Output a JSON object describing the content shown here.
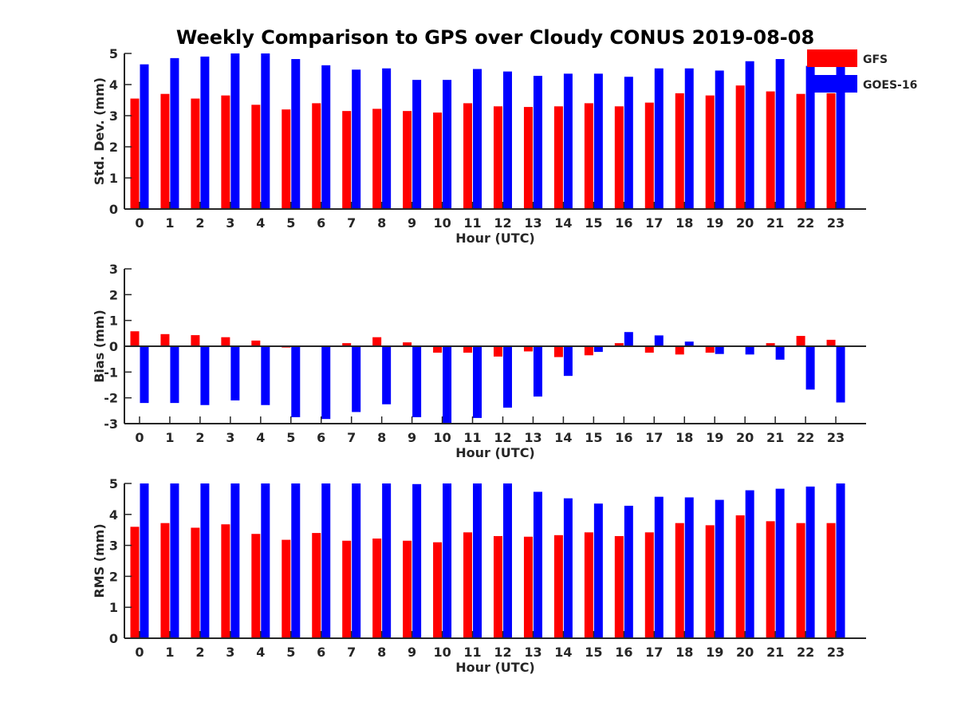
{
  "title": "Weekly Comparison to GPS over Cloudy CONUS 2019-08-08",
  "legend": [
    {
      "name": "GFS",
      "color": "#ff0000"
    },
    {
      "name": "GOES-16",
      "color": "#0000ff"
    }
  ],
  "chart_data": [
    {
      "type": "bar",
      "xlabel": "Hour (UTC)",
      "ylabel": "Std. Dev. (mm)",
      "ylim": [
        0,
        5
      ],
      "yticks": [
        0,
        1,
        2,
        3,
        4,
        5
      ],
      "categories": [
        "0",
        "1",
        "2",
        "3",
        "4",
        "5",
        "6",
        "7",
        "8",
        "9",
        "10",
        "11",
        "12",
        "13",
        "14",
        "15",
        "16",
        "17",
        "18",
        "19",
        "20",
        "21",
        "22",
        "23"
      ],
      "legend_position": "top-right",
      "series": [
        {
          "name": "GFS",
          "color": "#ff0000",
          "values": [
            3.55,
            3.7,
            3.55,
            3.65,
            3.35,
            3.2,
            3.4,
            3.15,
            3.22,
            3.15,
            3.1,
            3.4,
            3.3,
            3.28,
            3.3,
            3.4,
            3.3,
            3.42,
            3.72,
            3.65,
            3.97,
            3.78,
            3.7,
            3.72
          ]
        },
        {
          "name": "GOES-16",
          "color": "#0000ff",
          "values": [
            4.65,
            4.85,
            4.9,
            5.0,
            5.0,
            4.82,
            4.62,
            4.48,
            4.52,
            4.15,
            4.15,
            4.5,
            4.42,
            4.28,
            4.35,
            4.35,
            4.25,
            4.52,
            4.52,
            4.45,
            4.75,
            4.82,
            4.6,
            4.6
          ]
        }
      ]
    },
    {
      "type": "bar",
      "xlabel": "Hour (UTC)",
      "ylabel": "Bias (mm)",
      "ylim": [
        -3,
        3
      ],
      "yticks": [
        -3,
        -2,
        -1,
        0,
        1,
        2,
        3
      ],
      "categories": [
        "0",
        "1",
        "2",
        "3",
        "4",
        "5",
        "6",
        "7",
        "8",
        "9",
        "10",
        "11",
        "12",
        "13",
        "14",
        "15",
        "16",
        "17",
        "18",
        "19",
        "20",
        "21",
        "22",
        "23"
      ],
      "series": [
        {
          "name": "GFS",
          "color": "#ff0000",
          "values": [
            0.58,
            0.47,
            0.43,
            0.35,
            0.22,
            -0.05,
            0.0,
            0.12,
            0.35,
            0.15,
            -0.25,
            -0.25,
            -0.4,
            -0.2,
            -0.42,
            -0.35,
            0.12,
            -0.25,
            -0.32,
            -0.25,
            0.0,
            0.12,
            0.4,
            0.25
          ]
        },
        {
          "name": "GOES-16",
          "color": "#0000ff",
          "values": [
            -2.2,
            -2.2,
            -2.28,
            -2.1,
            -2.28,
            -2.75,
            -2.82,
            -2.55,
            -2.25,
            -2.75,
            -3.0,
            -2.78,
            -2.38,
            -1.95,
            -1.15,
            -0.22,
            0.55,
            0.42,
            0.18,
            -0.3,
            -0.32,
            -0.52,
            -1.68,
            -2.18
          ]
        }
      ]
    },
    {
      "type": "bar",
      "xlabel": "Hour (UTC)",
      "ylabel": "RMS (mm)",
      "ylim": [
        0,
        5
      ],
      "yticks": [
        0,
        1,
        2,
        3,
        4,
        5
      ],
      "categories": [
        "0",
        "1",
        "2",
        "3",
        "4",
        "5",
        "6",
        "7",
        "8",
        "9",
        "10",
        "11",
        "12",
        "13",
        "14",
        "15",
        "16",
        "17",
        "18",
        "19",
        "20",
        "21",
        "22",
        "23"
      ],
      "series": [
        {
          "name": "GFS",
          "color": "#ff0000",
          "values": [
            3.6,
            3.72,
            3.57,
            3.68,
            3.37,
            3.18,
            3.4,
            3.15,
            3.22,
            3.15,
            3.1,
            3.42,
            3.3,
            3.28,
            3.33,
            3.42,
            3.3,
            3.42,
            3.72,
            3.65,
            3.97,
            3.78,
            3.72,
            3.72
          ]
        },
        {
          "name": "GOES-16",
          "color": "#0000ff",
          "values": [
            5.0,
            5.0,
            5.0,
            5.0,
            5.0,
            5.0,
            5.0,
            5.0,
            5.0,
            4.98,
            5.0,
            5.0,
            5.0,
            4.73,
            4.52,
            4.35,
            4.28,
            4.57,
            4.55,
            4.47,
            4.78,
            4.83,
            4.9,
            5.0
          ]
        }
      ]
    }
  ]
}
